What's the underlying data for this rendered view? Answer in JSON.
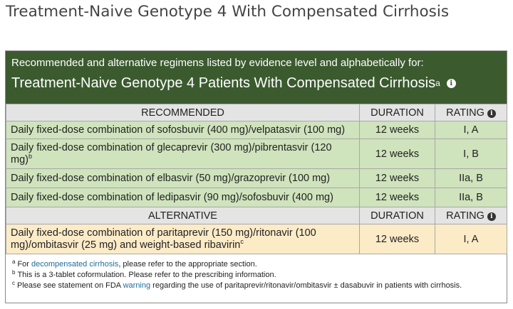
{
  "page_title": "Treatment-Naive Genotype 4 With Compensated Cirrhosis",
  "panel": {
    "subtitle": "Recommended and alternative regimens listed by evidence level and alphabetically for:",
    "heading": "Treatment-Naive Genotype 4 Patients With Compensated Cirrhosis",
    "heading_footnote": "a",
    "info_icon": "info-icon",
    "header_color": "#3b5b2f"
  },
  "recommended": {
    "header": {
      "regimen": "RECOMMENDED",
      "duration": "DURATION",
      "rating": "RATING"
    },
    "color": "#cfe3bd",
    "rows": [
      {
        "regimen": "Daily fixed-dose combination of sofosbuvir (400 mg)/velpatasvir (100 mg)",
        "footnote": "",
        "duration": "12 weeks",
        "rating": "I, A"
      },
      {
        "regimen": "Daily fixed-dose combination of glecaprevir (300 mg)/pibrentasvir (120 mg)",
        "footnote": "b",
        "duration": "12 weeks",
        "rating": "I, B"
      },
      {
        "regimen": "Daily fixed-dose combination of elbasvir (50 mg)/grazoprevir (100 mg)",
        "footnote": "",
        "duration": "12 weeks",
        "rating": "IIa, B"
      },
      {
        "regimen": "Daily fixed-dose combination of ledipasvir (90 mg)/sofosbuvir (400 mg)",
        "footnote": "",
        "duration": "12 weeks",
        "rating": "IIa, B"
      }
    ]
  },
  "alternative": {
    "header": {
      "regimen": "ALTERNATIVE",
      "duration": "DURATION",
      "rating": "RATING"
    },
    "color": "#fcebc7",
    "rows": [
      {
        "regimen": "Daily fixed-dose combination of paritaprevir (150 mg)/ritonavir (100 mg)/ombitasvir (25 mg) and weight-based ribavirin",
        "footnote": "c",
        "duration": "12 weeks",
        "rating": "I, A"
      }
    ]
  },
  "footnotes": {
    "a": {
      "mark": "a",
      "pre": "For ",
      "link": "decompensated cirrhosis",
      "post": ", please refer to the appropriate section."
    },
    "b": {
      "mark": "b",
      "text": "This is a 3-tablet coformulation. Please refer to the prescribing information."
    },
    "c": {
      "mark": "c",
      "pre": "Please see statement on FDA ",
      "link": "warning",
      "post": " regarding the use of paritaprevir/ritonavir/ombitasvir ± dasabuvir in patients with cirrhosis."
    }
  }
}
